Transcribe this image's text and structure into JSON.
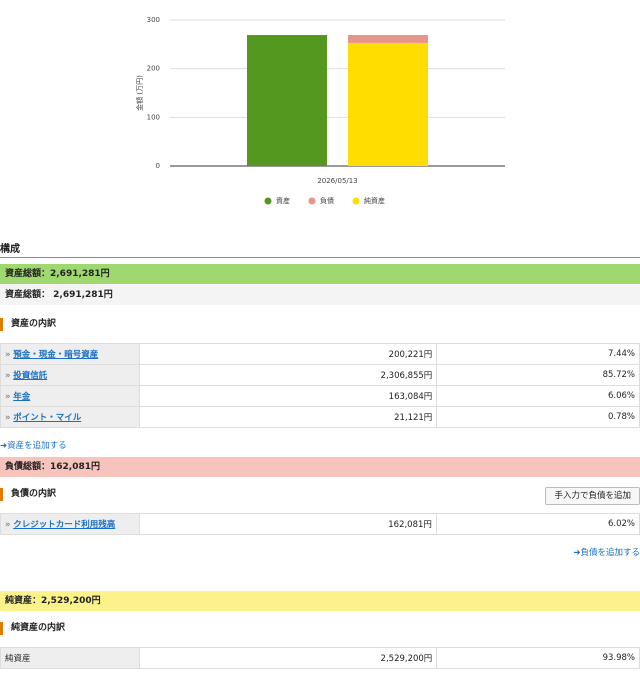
{
  "chart_data": {
    "type": "bar",
    "ylabel": "金額 (万円)",
    "categories": [
      "2026/05/13"
    ],
    "series": [
      {
        "name": "資産",
        "color": "#55981f",
        "stack": "資産",
        "values": [
          269.1281
        ]
      },
      {
        "name": "負債",
        "color": "#e8958a",
        "stack": "純資産",
        "values": [
          16.2081
        ]
      },
      {
        "name": "純資産",
        "color": "#ffdd00",
        "stack": "純資産",
        "values": [
          252.92
        ]
      }
    ],
    "ylim": [
      0,
      300
    ],
    "yticks": [
      0,
      100,
      200,
      300
    ],
    "grid": true,
    "legend": "bottom"
  },
  "section_title": "構成",
  "assets": {
    "total_bar": "資産総額：2,691,281円",
    "total_line": "資産総額： 2,691,281円",
    "breakdown_title": "資産の内訳",
    "rows": [
      [
        "預金・現金・暗号資産",
        "200,221円",
        "7.44%"
      ],
      [
        "投資信託",
        "2,306,855円",
        "85.72%"
      ],
      [
        "年金",
        "163,084円",
        "6.06%"
      ],
      [
        "ポイント・マイル",
        "21,121円",
        "0.78%"
      ]
    ],
    "add_link": "資産を追加する"
  },
  "liabilities": {
    "total_bar": "負債総額：162,081円",
    "breakdown_title": "負債の内訳",
    "manual_button": "手入力で負債を追加",
    "rows": [
      [
        "クレジットカード利用残高",
        "162,081円",
        "6.02%"
      ]
    ],
    "add_link": "負債を追加する"
  },
  "net_assets": {
    "total_bar": "純資産：2,529,200円",
    "breakdown_title": "純資産の内訳",
    "rows": [
      [
        "純資産",
        "2,529,200円",
        "93.98%"
      ]
    ]
  }
}
